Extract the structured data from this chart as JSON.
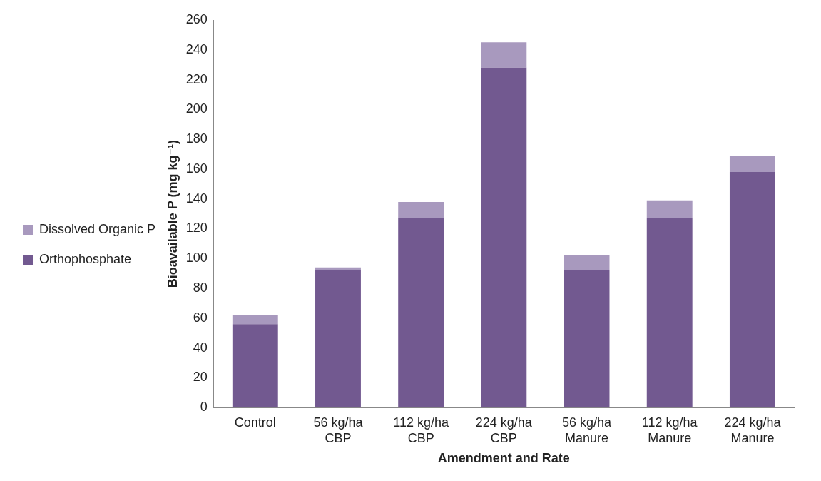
{
  "chart_data": {
    "type": "bar",
    "stacked": true,
    "xlabel": "Amendment and Rate",
    "ylabel": "Bioavailable P (mg kg⁻¹)",
    "categories": [
      "Control",
      "56 kg/ha CBP",
      "112 kg/ha CBP",
      "224 kg/ha CBP",
      "56 kg/ha Manure",
      "112 kg/ha Manure",
      "224 kg/ha Manure"
    ],
    "series": [
      {
        "name": "Orthophosphate",
        "color": "#725990",
        "values": [
          56,
          92,
          127,
          228,
          92,
          127,
          158
        ]
      },
      {
        "name": "Dissolved Organic P",
        "color": "#a899be",
        "values": [
          6,
          2,
          11,
          17,
          10,
          12,
          11
        ]
      }
    ],
    "ylim": [
      0,
      260
    ],
    "yticks": [
      0,
      20,
      40,
      60,
      80,
      100,
      120,
      140,
      160,
      180,
      200,
      220,
      240,
      260
    ],
    "grid": false,
    "legend": "left"
  }
}
